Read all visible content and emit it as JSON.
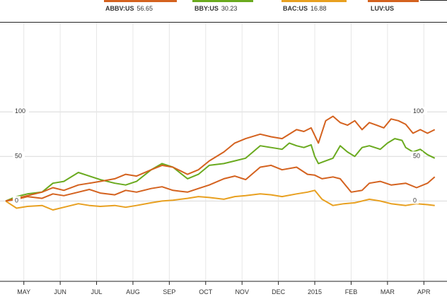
{
  "legend": [
    {
      "ticker": "",
      "price": "",
      "color": "#d4621f"
    },
    {
      "ticker": "ABBV:US",
      "price": "56.65",
      "color": "#d4621f"
    },
    {
      "ticker": "BBY:US",
      "price": "30.23",
      "color": "#6aaa1f"
    },
    {
      "ticker": "BAC:US",
      "price": "16.88",
      "color": "#e8a020"
    },
    {
      "ticker": "LUV:US",
      "price": "",
      "color": "#d4621f"
    },
    {
      "ticker": "",
      "price": "",
      "color": "#222222"
    }
  ],
  "chart_data": {
    "type": "line",
    "title": "",
    "xlabel": "",
    "ylabel": "",
    "ylim": [
      -90,
      200
    ],
    "yticks_left": [
      "100",
      "50",
      "0"
    ],
    "yticks_right": [
      "100",
      "50",
      "0"
    ],
    "grid": true,
    "legend_position": "top",
    "xlim": [
      0,
      12
    ],
    "months": [
      "MAY",
      "JUN",
      "JUL",
      "AUG",
      "SEP",
      "OCT",
      "NOV",
      "DEC",
      "2015",
      "FEB",
      "MAR",
      "APR"
    ],
    "series": [
      {
        "name": "ABBV:US",
        "color": "#d4621f",
        "x": [
          0,
          0.3,
          0.6,
          1,
          1.3,
          1.6,
          2,
          2.3,
          2.6,
          3,
          3.3,
          3.6,
          4,
          4.3,
          4.6,
          5,
          5.3,
          5.6,
          6,
          6.3,
          6.6,
          7,
          7.3,
          7.6,
          8,
          8.3,
          8.5,
          8.7,
          9,
          9.2,
          9.5,
          9.8,
          10,
          10.3,
          10.6,
          11,
          11.3,
          11.6,
          11.8
        ],
        "values": [
          0,
          2,
          5,
          3,
          8,
          6,
          10,
          13,
          9,
          7,
          12,
          10,
          14,
          16,
          12,
          10,
          14,
          18,
          25,
          28,
          24,
          38,
          40,
          35,
          38,
          30,
          29,
          25,
          27,
          25,
          10,
          12,
          20,
          22,
          18,
          20,
          15,
          20,
          27
        ]
      },
      {
        "name": "BBY:US",
        "color": "#6aaa1f",
        "x": [
          0,
          0.3,
          0.6,
          1,
          1.3,
          1.6,
          2,
          2.3,
          2.6,
          3,
          3.3,
          3.6,
          4,
          4.3,
          4.6,
          5,
          5.3,
          5.6,
          6,
          6.3,
          6.6,
          7,
          7.3,
          7.6,
          7.8,
          8,
          8.2,
          8.4,
          8.5,
          8.6,
          8.8,
          9,
          9.2,
          9.4,
          9.6,
          9.8,
          10,
          10.3,
          10.5,
          10.7,
          10.9,
          11,
          11.2,
          11.4,
          11.6,
          11.8
        ],
        "values": [
          0,
          5,
          8,
          10,
          20,
          22,
          32,
          28,
          24,
          20,
          18,
          22,
          35,
          42,
          38,
          25,
          30,
          40,
          42,
          45,
          48,
          62,
          60,
          58,
          65,
          62,
          60,
          63,
          50,
          42,
          45,
          48,
          62,
          55,
          50,
          60,
          62,
          58,
          65,
          70,
          68,
          60,
          55,
          58,
          52,
          48
        ]
      },
      {
        "name": "BAC:US",
        "color": "#e8a020",
        "x": [
          0,
          0.3,
          0.6,
          1,
          1.3,
          1.6,
          2,
          2.3,
          2.6,
          3,
          3.3,
          3.6,
          4,
          4.3,
          4.6,
          5,
          5.3,
          5.6,
          6,
          6.3,
          6.6,
          7,
          7.3,
          7.6,
          8,
          8.3,
          8.5,
          8.7,
          9,
          9.3,
          9.6,
          10,
          10.3,
          10.6,
          11,
          11.3,
          11.6,
          11.8
        ],
        "values": [
          0,
          -8,
          -6,
          -5,
          -10,
          -7,
          -3,
          -5,
          -6,
          -5,
          -7,
          -5,
          -2,
          0,
          1,
          3,
          5,
          4,
          2,
          5,
          6,
          8,
          7,
          5,
          8,
          10,
          12,
          2,
          -5,
          -3,
          -2,
          2,
          0,
          -3,
          -5,
          -3,
          -4,
          -5
        ]
      },
      {
        "name": "LUV:US",
        "color": "#d4621f",
        "x": [
          0,
          0.3,
          0.6,
          1,
          1.3,
          1.6,
          2,
          2.3,
          2.6,
          3,
          3.3,
          3.6,
          4,
          4.3,
          4.6,
          5,
          5.3,
          5.6,
          6,
          6.3,
          6.6,
          7,
          7.3,
          7.6,
          8,
          8.2,
          8.4,
          8.6,
          8.8,
          9,
          9.2,
          9.4,
          9.6,
          9.8,
          10,
          10.2,
          10.4,
          10.6,
          10.8,
          11,
          11.2,
          11.4,
          11.6,
          11.8
        ],
        "values": [
          0,
          3,
          6,
          10,
          15,
          12,
          18,
          20,
          22,
          25,
          30,
          28,
          35,
          40,
          38,
          30,
          35,
          45,
          55,
          65,
          70,
          75,
          72,
          70,
          80,
          78,
          82,
          65,
          90,
          95,
          88,
          85,
          90,
          80,
          88,
          85,
          82,
          92,
          90,
          86,
          76,
          80,
          76,
          80
        ]
      }
    ]
  }
}
